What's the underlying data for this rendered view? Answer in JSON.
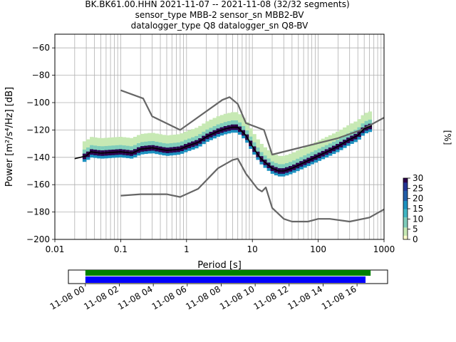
{
  "header": {
    "line1": "BK.BK61.00.HHN   2021-11-07 -- 2021-11-08  (32/32 segments)",
    "line2": "sensor_type MBB-2 sensor_sn MBB2-BV",
    "line3": "datalogger_type Q8 datalogger_sn Q8-BV"
  },
  "chart_data": [
    {
      "type": "heatmap",
      "xlabel": "Period [s]",
      "ylabel": "Power [m²/s⁴/Hz] [dB]",
      "x_scale": "log",
      "xlim": [
        0.01,
        1000
      ],
      "ylim": [
        -200,
        -50
      ],
      "x_ticks": [
        0.01,
        0.1,
        1,
        10,
        100,
        1000
      ],
      "x_tick_labels": [
        "0.01",
        "0.1",
        "1",
        "10",
        "100",
        "1000"
      ],
      "y_ticks": [
        -200,
        -180,
        -160,
        -140,
        -120,
        -100,
        -80,
        -60
      ],
      "y_tick_labels": [
        "−200",
        "−180",
        "−160",
        "−140",
        "−120",
        "−100",
        "−80",
        "−60"
      ],
      "grid": true,
      "series": [
        {
          "name": "",
          "color": "#666666",
          "points": [
            [
              0.1,
              -91
            ],
            [
              0.22,
              -97
            ],
            [
              0.3,
              -110
            ],
            [
              0.8,
              -120
            ],
            [
              3.5,
              -98
            ],
            [
              4.5,
              -96
            ],
            [
              6,
              -101
            ],
            [
              8,
              -115
            ],
            [
              15,
              -120
            ],
            [
              20,
              -138
            ],
            [
              200,
              -126
            ],
            [
              450,
              -120
            ],
            [
              1000,
              -111
            ]
          ]
        },
        {
          "name": "",
          "color": "#666666",
          "points": [
            [
              0.1,
              -168
            ],
            [
              0.2,
              -167
            ],
            [
              0.5,
              -167
            ],
            [
              0.8,
              -169
            ],
            [
              1.5,
              -163
            ],
            [
              3,
              -148
            ],
            [
              5,
              -142
            ],
            [
              6,
              -141
            ],
            [
              8,
              -152
            ],
            [
              12,
              -163
            ],
            [
              14,
              -165
            ],
            [
              16,
              -162
            ],
            [
              20,
              -177
            ],
            [
              30,
              -185
            ],
            [
              40,
              -187
            ],
            [
              70,
              -187
            ],
            [
              100,
              -185
            ],
            [
              150,
              -185
            ],
            [
              300,
              -187
            ],
            [
              600,
              -184
            ],
            [
              1000,
              -178
            ]
          ]
        },
        {
          "name": "",
          "color": "#000000",
          "points": [
            [
              0.02,
              -141
            ],
            [
              0.03,
              -139
            ],
            [
              0.035,
              -136
            ],
            [
              0.05,
              -137
            ],
            [
              0.1,
              -136
            ],
            [
              0.15,
              -137
            ],
            [
              0.2,
              -134
            ],
            [
              0.3,
              -133
            ],
            [
              0.5,
              -135
            ],
            [
              0.8,
              -134
            ],
            [
              1,
              -132
            ],
            [
              1.5,
              -129
            ],
            [
              2,
              -125
            ],
            [
              3,
              -121
            ],
            [
              4,
              -119
            ],
            [
              5,
              -118
            ],
            [
              6,
              -118
            ],
            [
              8,
              -124
            ],
            [
              10,
              -132
            ],
            [
              13,
              -140
            ],
            [
              15,
              -143
            ],
            [
              20,
              -148
            ],
            [
              25,
              -150
            ],
            [
              30,
              -150
            ],
            [
              40,
              -148
            ],
            [
              60,
              -144
            ],
            [
              100,
              -139
            ],
            [
              150,
              -135
            ],
            [
              200,
              -132
            ],
            [
              300,
              -127
            ],
            [
              400,
              -124
            ],
            [
              500,
              -119
            ],
            [
              650,
              -117
            ]
          ]
        }
      ],
      "colorbar": {
        "label": "[%]",
        "ticks": [
          0,
          5,
          10,
          15,
          20,
          25,
          30
        ],
        "tick_labels": [
          "0",
          "5",
          "10",
          "15",
          "20",
          "25",
          "30"
        ],
        "range": [
          0,
          30
        ],
        "colormap": [
          "#ffffcc",
          "#c7e9b4",
          "#7fcdbb",
          "#41b6c4",
          "#1d91c0",
          "#225ea8",
          "#253494",
          "#2d004b"
        ]
      },
      "density_bands": [
        {
          "center_offset": 0,
          "half_width": 2,
          "percent": 28
        },
        {
          "center_offset": -1,
          "half_width": 3,
          "percent": 16
        },
        {
          "center_offset": 2,
          "half_width": 3,
          "percent": 9
        },
        {
          "center_offset": 6,
          "half_width": 5,
          "percent": 3
        }
      ]
    },
    {
      "type": "bar",
      "xlabel": "",
      "ylabel": "",
      "x_unit": "hours since 11-08 00:00",
      "xlim": [
        -1,
        17.8
      ],
      "x_ticks": [
        0,
        2,
        4,
        6,
        8,
        10,
        12,
        14,
        16
      ],
      "x_tick_labels": [
        "11-08 00",
        "11-08 02",
        "11-08 04",
        "11-08 06",
        "11-08 08",
        "11-08 10",
        "11-08 12",
        "11-08 14",
        "11-08 16"
      ],
      "series": [
        {
          "name": "",
          "color": "#008000",
          "start": 0,
          "end": 16.8
        },
        {
          "name": "",
          "color": "#0000ff",
          "start": 0,
          "end": 16.5
        }
      ]
    }
  ]
}
